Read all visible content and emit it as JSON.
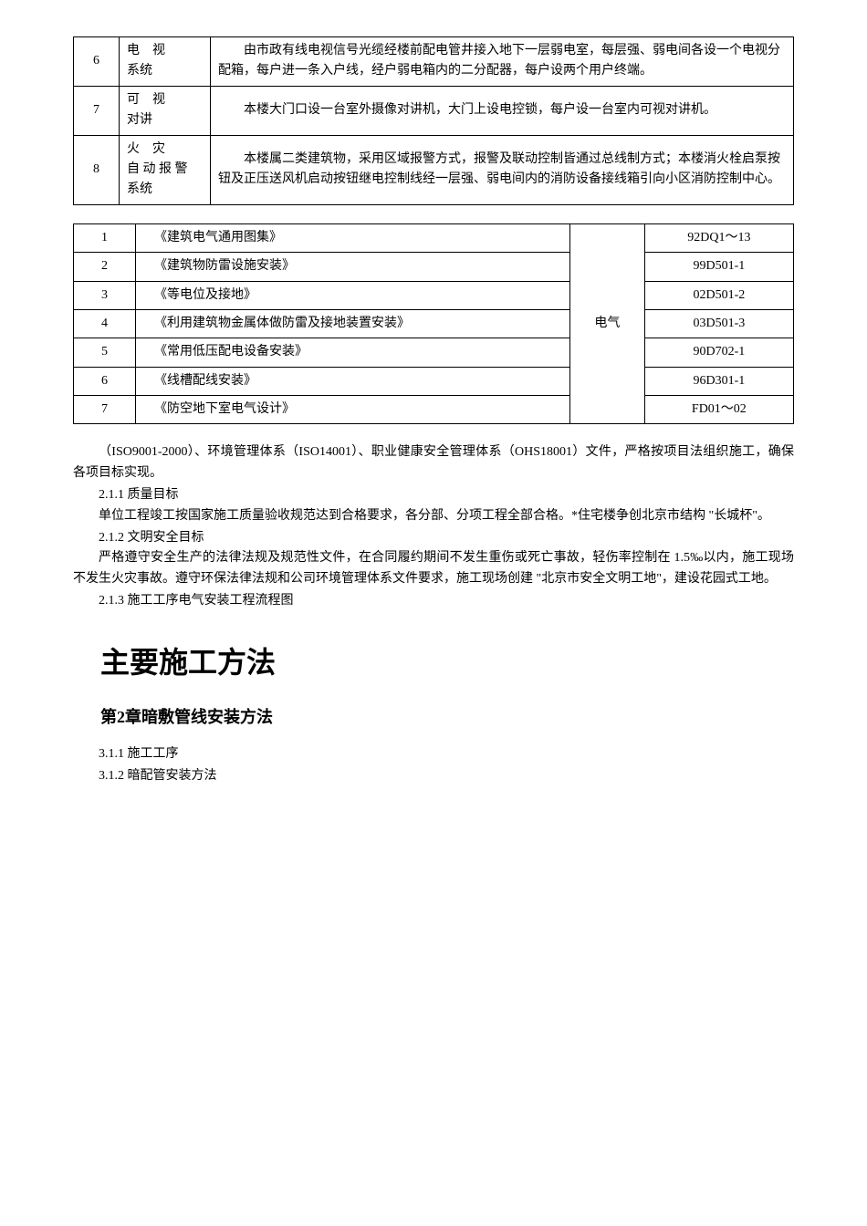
{
  "table1": {
    "rows": [
      {
        "num": "6",
        "name": "电视系统",
        "name_spaced": "电　视",
        "name_line2": "系统",
        "desc": "由市政有线电视信号光缆经楼前配电管井接入地下一层弱电室，每层强、弱电间各设一个电视分配箱，每户进一条入户线，经户弱电箱内的二分配器，每户设两个用户终端。"
      },
      {
        "num": "7",
        "name": "可视对讲",
        "name_spaced": "可　视",
        "name_line2": "对讲",
        "desc": "本楼大门口设一台室外摄像对讲机，大门上设电控锁，每户设一台室内可视对讲机。"
      },
      {
        "num": "8",
        "name": "火灾自动报警系统",
        "name_spaced": "火　灾",
        "name_line2": "自 动 报 警",
        "name_line3": "系统",
        "desc": "本楼属二类建筑物，采用区域报警方式，报警及联动控制皆通过总线制方式；本楼消火栓启泵按钮及正压送风机启动按钮继电控制线经一层强、弱电间内的消防设备接线箱引向小区消防控制中心。"
      }
    ]
  },
  "table2": {
    "category": "电气",
    "rows": [
      {
        "num": "1",
        "name": "《建筑电气通用图集》",
        "code": "92DQ1～13"
      },
      {
        "num": "2",
        "name": "《建筑物防雷设施安装》",
        "code": "99D501-1"
      },
      {
        "num": "3",
        "name": "《等电位及接地》",
        "code": "02D501-2"
      },
      {
        "num": "4",
        "name": "《利用建筑物金属体做防雷及接地装置安装》",
        "code": "03D501-3"
      },
      {
        "num": "5",
        "name": "《常用低压配电设备安装》",
        "code": "90D702-1"
      },
      {
        "num": "6",
        "name": "《线槽配线安装》",
        "code": "96D301-1"
      },
      {
        "num": "7",
        "name": "《防空地下室电气设计》",
        "code": "FD01～02"
      }
    ]
  },
  "paragraphs": {
    "p1": "（ISO9001-2000）、环境管理体系（ISO14001）、职业健康安全管理体系（OHS18001）文件，严格按项目法组织施工，确保各项目标实现。",
    "s211_title": "2.1.1 质量目标",
    "s211_body": "单位工程竣工按国家施工质量验收规范达到合格要求，各分部、分项工程全部合格。*住宅楼争创北京市结构 \"长城杯\"。",
    "s212_title": "2.1.2 文明安全目标",
    "s212_body": "严格遵守安全生产的法律法规及规范性文件，在合同履约期间不发生重伤或死亡事故，轻伤率控制在 1.5‰以内，施工现场不发生火灾事故。遵守环保法律法规和公司环境管理体系文件要求，施工现场创建 \"北京市安全文明工地\"，建设花园式工地。",
    "s213_title": "2.1.3 施工工序电气安装工程流程图"
  },
  "headings": {
    "h1": "主要施工方法",
    "h2": "第2章暗敷管线安装方法",
    "s311": "3.1.1 施工工序",
    "s312": "3.1.2 暗配管安装方法"
  }
}
